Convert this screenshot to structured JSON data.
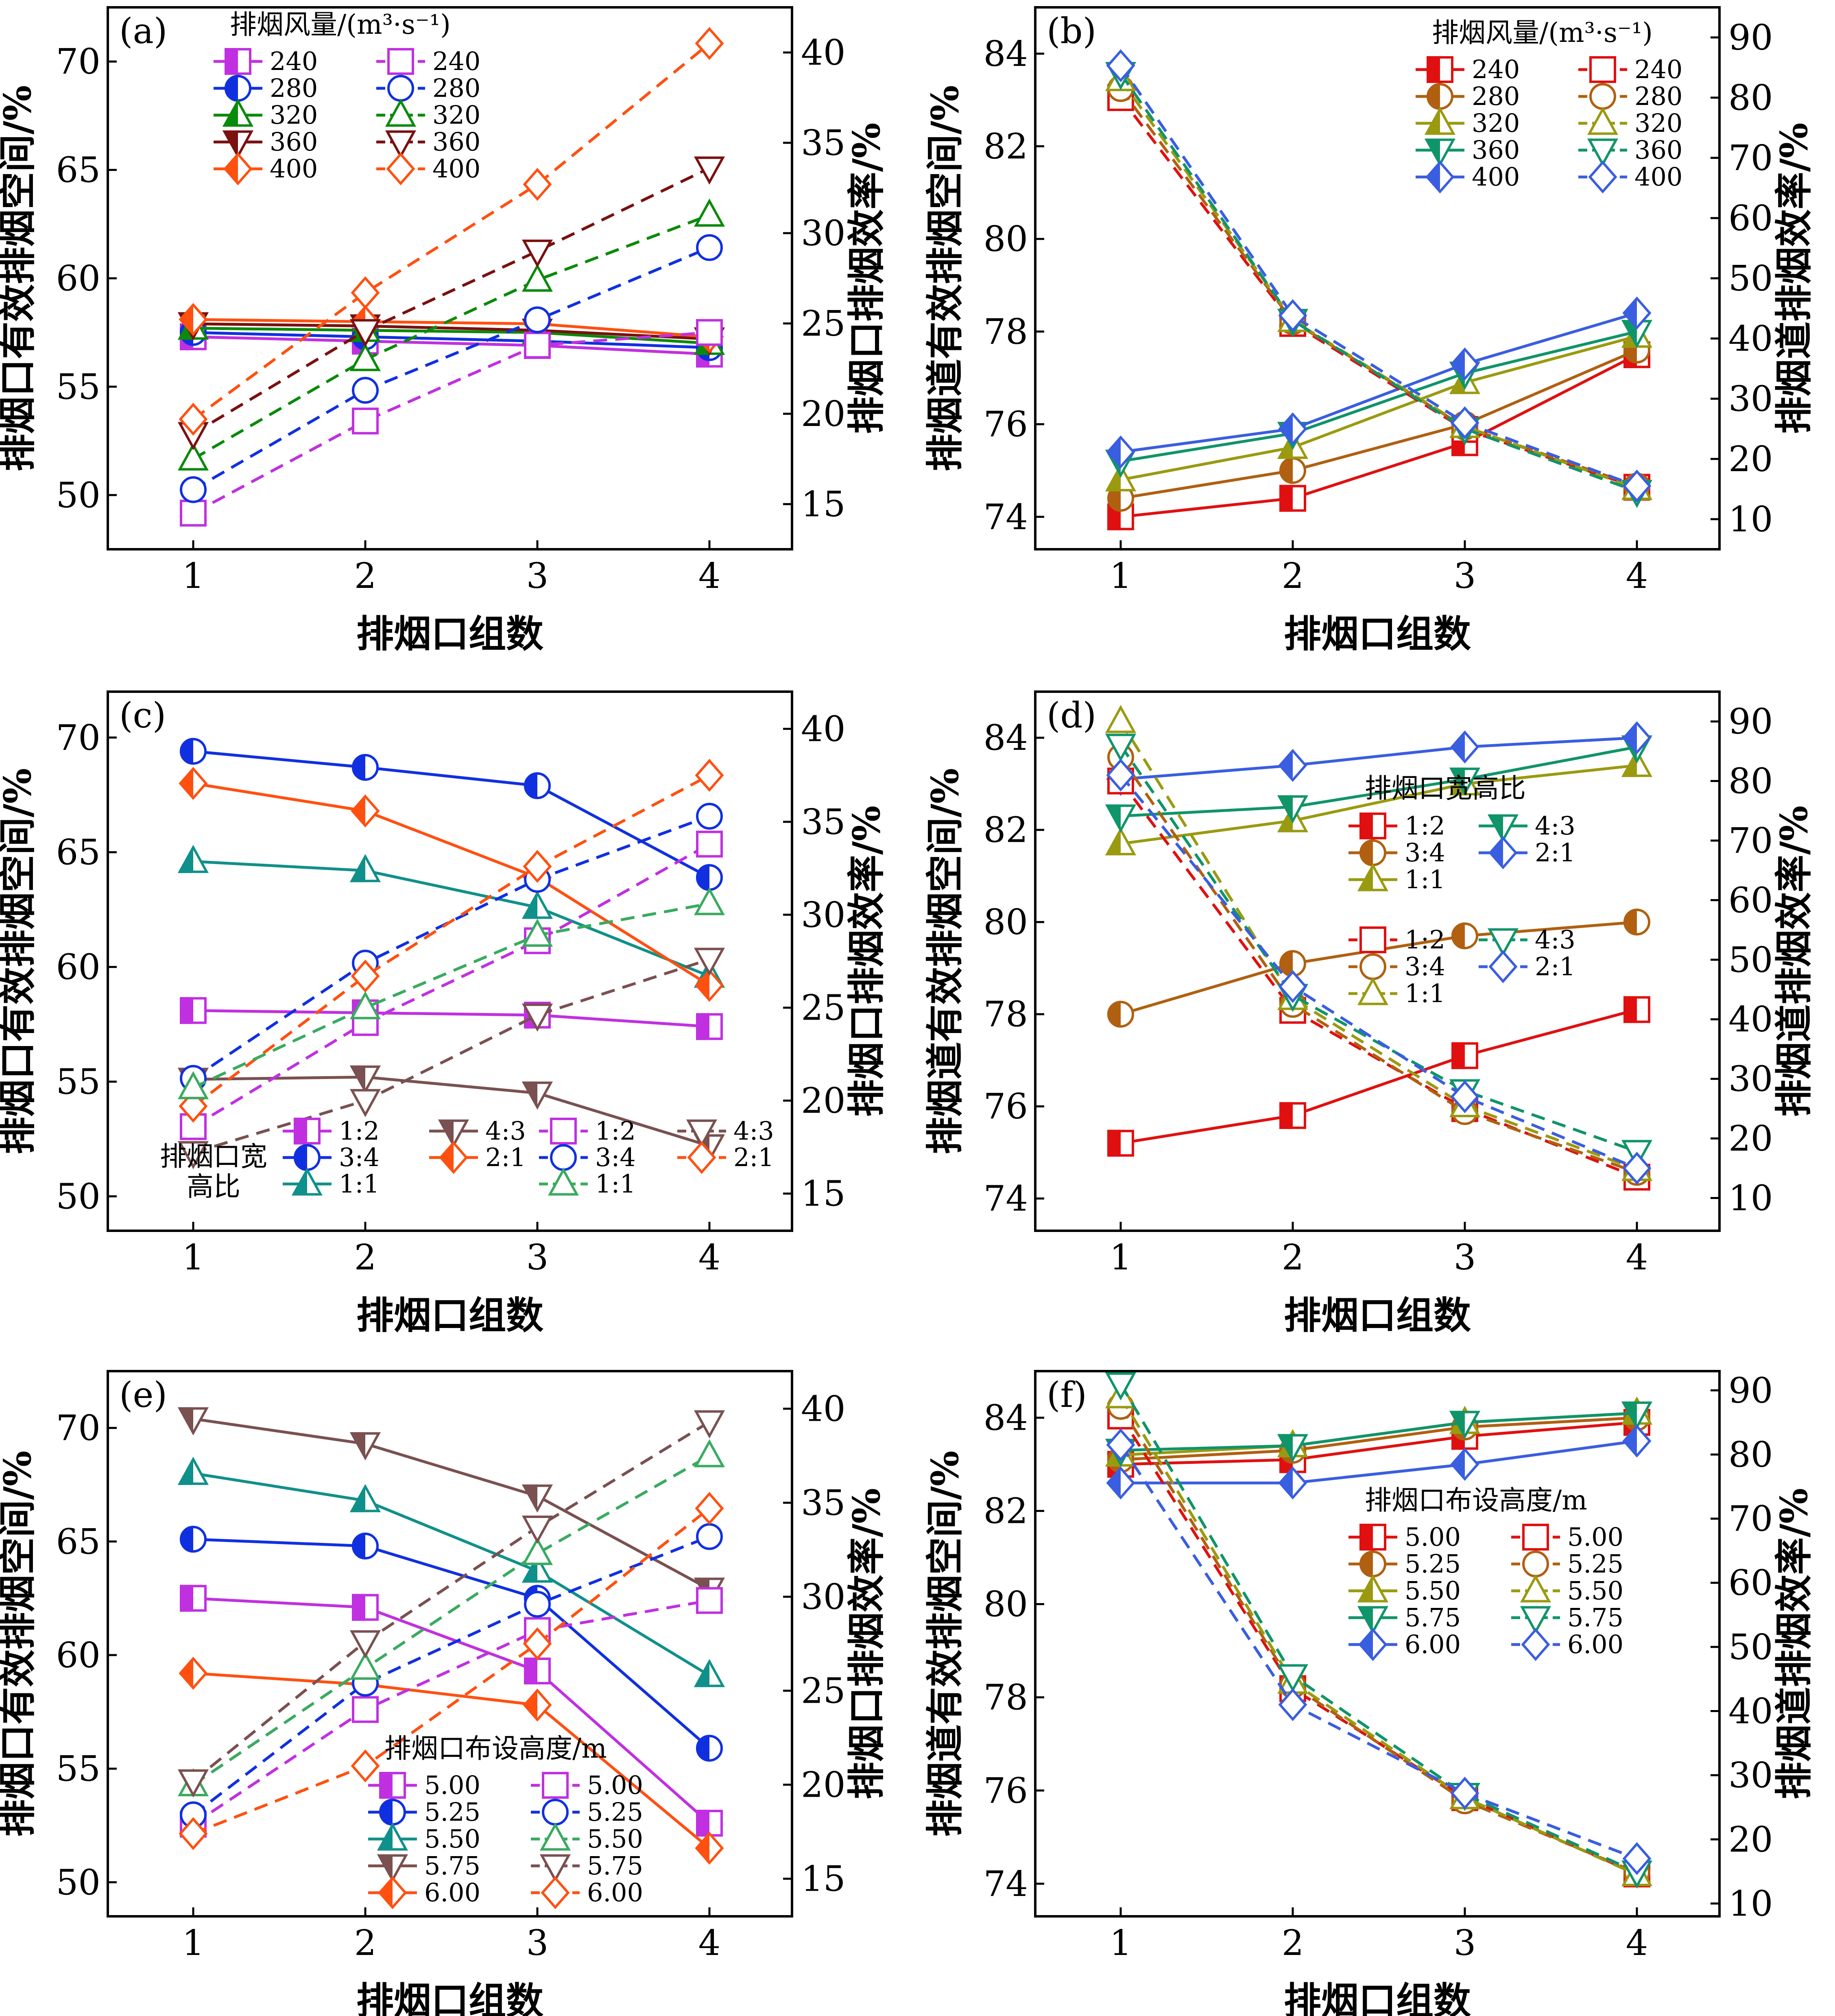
{
  "figure": {
    "x_axis_title": "排烟口组数",
    "left_titles": {
      "kou": "排烟口有效排烟空间/%",
      "dao": "排烟道有效排烟空间/%"
    },
    "right_titles": {
      "kou": "排烟口排烟效率/%",
      "dao": "排烟道排烟效率/%"
    }
  },
  "chart_data": [
    {
      "panel": "(a)",
      "type": "line",
      "kind": "kou",
      "x": [
        1,
        2,
        3,
        4
      ],
      "xlabel": "排烟口组数",
      "ylabel": "排烟口有效排烟空间/%",
      "y2label": "排烟口排烟效率/%",
      "ylim": [
        47.5,
        72.5
      ],
      "yticks": [
        50,
        55,
        60,
        65,
        70
      ],
      "y2lim": [
        12.5,
        42.5
      ],
      "y2ticks": [
        15,
        20,
        25,
        30,
        35,
        40
      ],
      "legend": {
        "title_lines": [
          "排烟风量/(m³·s⁻¹)"
        ],
        "position": "top-left",
        "layout": "two-column"
      },
      "series": [
        {
          "name": "240",
          "color": "#c030e0",
          "marker": "square",
          "axis": "left",
          "values": [
            57.3,
            57.1,
            56.9,
            56.5
          ]
        },
        {
          "name": "280",
          "color": "#1030e0",
          "marker": "circle",
          "axis": "left",
          "values": [
            57.5,
            57.3,
            57.1,
            56.8
          ]
        },
        {
          "name": "320",
          "color": "#0a8a0a",
          "marker": "triangle-up",
          "axis": "left",
          "values": [
            57.7,
            57.6,
            57.5,
            57.0
          ]
        },
        {
          "name": "360",
          "color": "#7a1010",
          "marker": "triangle-down",
          "axis": "left",
          "values": [
            57.9,
            57.8,
            57.6,
            57.2
          ]
        },
        {
          "name": "400",
          "color": "#ff5010",
          "marker": "diamond",
          "axis": "left",
          "values": [
            58.1,
            58.0,
            57.9,
            57.3
          ]
        },
        {
          "name": "240",
          "color": "#c030e0",
          "marker": "square",
          "axis": "right",
          "values": [
            14.5,
            19.6,
            23.8,
            24.5
          ]
        },
        {
          "name": "280",
          "color": "#1030e0",
          "marker": "circle",
          "axis": "right",
          "values": [
            15.8,
            21.3,
            25.2,
            29.2
          ]
        },
        {
          "name": "320",
          "color": "#0a8a0a",
          "marker": "triangle-up",
          "axis": "right",
          "values": [
            17.5,
            23.0,
            27.4,
            31.0
          ]
        },
        {
          "name": "360",
          "color": "#7a1010",
          "marker": "triangle-down",
          "axis": "right",
          "values": [
            18.9,
            24.6,
            29.0,
            33.6
          ]
        },
        {
          "name": "400",
          "color": "#ff5010",
          "marker": "diamond",
          "axis": "right",
          "values": [
            19.7,
            26.7,
            32.7,
            40.5
          ]
        }
      ]
    },
    {
      "panel": "(b)",
      "type": "line",
      "kind": "dao",
      "x": [
        1,
        2,
        3,
        4
      ],
      "xlabel": "排烟口组数",
      "ylabel": "排烟道有效排烟空间/%",
      "y2label": "排烟道排烟效率/%",
      "ylim": [
        73.3,
        85.0
      ],
      "yticks": [
        74,
        76,
        78,
        80,
        82,
        84
      ],
      "y2lim": [
        5.0,
        95.0
      ],
      "y2ticks": [
        10,
        20,
        30,
        40,
        50,
        60,
        70,
        80,
        90
      ],
      "legend": {
        "title_lines": [
          "排烟风量/(m³·s⁻¹)"
        ],
        "position": "top-right",
        "layout": "two-column"
      },
      "series": [
        {
          "name": "240",
          "color": "#e01010",
          "marker": "square",
          "axis": "left",
          "values": [
            74.0,
            74.4,
            75.6,
            77.5
          ]
        },
        {
          "name": "280",
          "color": "#b06010",
          "marker": "circle",
          "axis": "left",
          "values": [
            74.4,
            75.0,
            76.0,
            77.6
          ]
        },
        {
          "name": "320",
          "color": "#9a9a10",
          "marker": "triangle-up",
          "axis": "left",
          "values": [
            74.8,
            75.5,
            76.9,
            77.9
          ]
        },
        {
          "name": "360",
          "color": "#10946a",
          "marker": "triangle-down",
          "axis": "left",
          "values": [
            75.2,
            75.8,
            77.1,
            78.0
          ]
        },
        {
          "name": "400",
          "color": "#3a5ee0",
          "marker": "diamond",
          "axis": "left",
          "values": [
            75.4,
            75.9,
            77.3,
            78.4
          ]
        },
        {
          "name": "240",
          "color": "#e01010",
          "marker": "square",
          "axis": "right",
          "values": [
            80.0,
            42.5,
            24.9,
            15.3
          ]
        },
        {
          "name": "280",
          "color": "#b06010",
          "marker": "circle",
          "axis": "right",
          "values": [
            81.5,
            42.8,
            25.3,
            15.5
          ]
        },
        {
          "name": "320",
          "color": "#9a9a10",
          "marker": "triangle-up",
          "axis": "right",
          "values": [
            83.0,
            43.0,
            25.4,
            15.1
          ]
        },
        {
          "name": "360",
          "color": "#10946a",
          "marker": "triangle-down",
          "axis": "right",
          "values": [
            84.0,
            43.0,
            25.0,
            14.6
          ]
        },
        {
          "name": "400",
          "color": "#3a5ee0",
          "marker": "diamond",
          "axis": "right",
          "values": [
            85.3,
            43.8,
            26.0,
            15.5
          ]
        }
      ]
    },
    {
      "panel": "(c)",
      "type": "line",
      "kind": "kou",
      "x": [
        1,
        2,
        3,
        4
      ],
      "xlabel": "排烟口组数",
      "ylabel": "排烟口有效排烟空间/%",
      "y2label": "排烟口排烟效率/%",
      "ylim": [
        48.5,
        72.0
      ],
      "yticks": [
        50,
        55,
        60,
        65,
        70
      ],
      "y2lim": [
        13.0,
        42.0
      ],
      "y2ticks": [
        15,
        20,
        25,
        30,
        35,
        40
      ],
      "legend": {
        "title_lines": [
          "排烟口宽",
          "高比"
        ],
        "position": "bottom",
        "layout": "three-row-grid"
      },
      "series": [
        {
          "name": "1:2",
          "color": "#c030e0",
          "marker": "square",
          "axis": "left",
          "values": [
            58.1,
            58.0,
            57.9,
            57.4
          ]
        },
        {
          "name": "3:4",
          "color": "#1030e0",
          "marker": "circle",
          "axis": "left",
          "values": [
            69.4,
            68.7,
            67.9,
            63.9
          ]
        },
        {
          "name": "1:1",
          "color": "#10908a",
          "marker": "triangle-up",
          "axis": "left",
          "values": [
            64.6,
            64.2,
            62.6,
            59.6
          ]
        },
        {
          "name": "4:3",
          "color": "#7a5050",
          "marker": "triangle-down",
          "axis": "left",
          "values": [
            55.1,
            55.2,
            54.5,
            52.2
          ]
        },
        {
          "name": "2:1",
          "color": "#ff5010",
          "marker": "diamond",
          "axis": "left",
          "values": [
            68.0,
            66.8,
            63.9,
            59.2
          ]
        },
        {
          "name": "1:2",
          "color": "#c030e0",
          "marker": "square",
          "axis": "right",
          "values": [
            18.6,
            24.2,
            28.6,
            33.8
          ]
        },
        {
          "name": "3:4",
          "color": "#1030e0",
          "marker": "circle",
          "axis": "right",
          "values": [
            21.2,
            27.4,
            31.9,
            35.3
          ]
        },
        {
          "name": "4:3",
          "color": "#7a5050",
          "marker": "triangle-down",
          "axis": "right",
          "values": [
            17.2,
            20.0,
            24.6,
            27.6
          ]
        },
        {
          "name": "2:1",
          "color": "#ff5010",
          "marker": "diamond",
          "axis": "right",
          "values": [
            19.7,
            26.7,
            32.6,
            37.5
          ]
        },
        {
          "name": "1:1",
          "color": "#3aaa60",
          "marker": "triangle-up",
          "axis": "right",
          "values": [
            20.7,
            25.0,
            28.9,
            30.6
          ]
        }
      ]
    },
    {
      "panel": "(d)",
      "type": "line",
      "kind": "dao",
      "x": [
        1,
        2,
        3,
        4
      ],
      "xlabel": "排烟口组数",
      "ylabel": "排烟道有效排烟空间/%",
      "y2label": "排烟道排烟效率/%",
      "ylim": [
        73.3,
        85.0
      ],
      "yticks": [
        74,
        76,
        78,
        80,
        82,
        84
      ],
      "y2lim": [
        4.5,
        95.0
      ],
      "y2ticks": [
        10,
        20,
        30,
        40,
        50,
        60,
        70,
        80,
        90
      ],
      "legend": {
        "title_lines": [
          "排烟口宽高比"
        ],
        "position": "right-middle",
        "layout": "two-column"
      },
      "series": [
        {
          "name": "1:2",
          "color": "#e01010",
          "marker": "square",
          "axis": "left",
          "values": [
            75.2,
            75.8,
            77.1,
            78.1
          ]
        },
        {
          "name": "3:4",
          "color": "#b06010",
          "marker": "circle",
          "axis": "left",
          "values": [
            78.0,
            79.1,
            79.7,
            80.0
          ]
        },
        {
          "name": "1:1",
          "color": "#9a9a10",
          "marker": "triangle-up",
          "axis": "left",
          "values": [
            81.7,
            82.2,
            83.0,
            83.4
          ]
        },
        {
          "name": "4:3",
          "color": "#10946a",
          "marker": "triangle-down",
          "axis": "left",
          "values": [
            82.3,
            82.5,
            83.1,
            83.8
          ]
        },
        {
          "name": "2:1",
          "color": "#3a5ee0",
          "marker": "diamond",
          "axis": "left",
          "values": [
            83.1,
            83.4,
            83.8,
            84.0
          ]
        },
        {
          "name": "1:2",
          "color": "#e01010",
          "marker": "square",
          "axis": "right",
          "values": [
            80.0,
            41.5,
            25.0,
            13.5
          ]
        },
        {
          "name": "3:4",
          "color": "#b06010",
          "marker": "circle",
          "axis": "right",
          "values": [
            84.0,
            42.5,
            24.5,
            14.3
          ]
        },
        {
          "name": "1:1",
          "color": "#9a9a10",
          "marker": "triangle-up",
          "axis": "right",
          "values": [
            90.0,
            43.5,
            25.5,
            14.8
          ]
        },
        {
          "name": "4:3",
          "color": "#10946a",
          "marker": "triangle-down",
          "axis": "right",
          "values": [
            86.0,
            44.0,
            28.0,
            17.8
          ]
        },
        {
          "name": "2:1",
          "color": "#3a5ee0",
          "marker": "diamond",
          "axis": "right",
          "values": [
            81.0,
            45.5,
            27.0,
            15.0
          ]
        }
      ]
    },
    {
      "panel": "(e)",
      "type": "line",
      "kind": "kou",
      "x": [
        1,
        2,
        3,
        4
      ],
      "xlabel": "排烟口组数",
      "ylabel": "排烟口有效排烟空间/%",
      "y2label": "排烟口排烟效率/%",
      "ylim": [
        48.5,
        72.5
      ],
      "yticks": [
        50,
        55,
        60,
        65,
        70
      ],
      "y2lim": [
        13.0,
        42.0
      ],
      "y2ticks": [
        15,
        20,
        25,
        30,
        35,
        40
      ],
      "legend": {
        "title_lines": [
          "排烟口布设高度/m"
        ],
        "position": "bottom-left",
        "layout": "two-column"
      },
      "series": [
        {
          "name": "5.00",
          "color": "#c030e0",
          "marker": "square",
          "axis": "left",
          "values": [
            62.5,
            62.1,
            59.3,
            52.6
          ]
        },
        {
          "name": "5.25",
          "color": "#1030e0",
          "marker": "circle",
          "axis": "left",
          "values": [
            65.1,
            64.8,
            62.5,
            55.9
          ]
        },
        {
          "name": "5.50",
          "color": "#10908a",
          "marker": "triangle-up",
          "axis": "left",
          "values": [
            68.0,
            66.8,
            63.7,
            59.1
          ]
        },
        {
          "name": "5.75",
          "color": "#7a5050",
          "marker": "triangle-down",
          "axis": "left",
          "values": [
            70.4,
            69.3,
            67.0,
            62.9
          ]
        },
        {
          "name": "6.00",
          "color": "#ff5010",
          "marker": "diamond",
          "axis": "left",
          "values": [
            59.2,
            58.7,
            57.8,
            51.5
          ]
        },
        {
          "name": "5.00",
          "color": "#c030e0",
          "marker": "square",
          "axis": "right",
          "values": [
            17.9,
            24.0,
            28.2,
            29.8
          ]
        },
        {
          "name": "5.25",
          "color": "#1030e0",
          "marker": "circle",
          "axis": "right",
          "values": [
            18.4,
            25.4,
            29.6,
            33.2
          ]
        },
        {
          "name": "5.50",
          "color": "#3aaa60",
          "marker": "triangle-up",
          "axis": "right",
          "values": [
            20.0,
            26.2,
            32.3,
            37.5
          ]
        },
        {
          "name": "5.75",
          "color": "#7a5050",
          "marker": "triangle-down",
          "axis": "right",
          "values": [
            20.2,
            27.6,
            33.7,
            39.3
          ]
        },
        {
          "name": "6.00",
          "color": "#ff5010",
          "marker": "diamond",
          "axis": "right",
          "values": [
            17.4,
            21.0,
            27.5,
            34.7
          ]
        }
      ]
    },
    {
      "panel": "(f)",
      "type": "line",
      "kind": "dao",
      "x": [
        1,
        2,
        3,
        4
      ],
      "xlabel": "排烟口组数",
      "ylabel": "排烟道有效排烟空间/%",
      "y2label": "排烟道排烟效率/%",
      "ylim": [
        73.3,
        85.0
      ],
      "yticks": [
        74,
        76,
        78,
        80,
        82,
        84
      ],
      "y2lim": [
        8.0,
        93.0
      ],
      "y2ticks": [
        10,
        20,
        30,
        40,
        50,
        60,
        70,
        80,
        90
      ],
      "legend": {
        "title_lines": [
          "排烟口布设高度/m"
        ],
        "position": "right-middle",
        "layout": "two-column"
      },
      "series": [
        {
          "name": "5.00",
          "color": "#e01010",
          "marker": "square",
          "axis": "left",
          "values": [
            83.0,
            83.1,
            83.6,
            83.9
          ]
        },
        {
          "name": "5.25",
          "color": "#b06010",
          "marker": "circle",
          "axis": "left",
          "values": [
            83.1,
            83.3,
            83.8,
            84.0
          ]
        },
        {
          "name": "5.50",
          "color": "#9a9a10",
          "marker": "triangle-up",
          "axis": "left",
          "values": [
            83.2,
            83.4,
            83.9,
            84.1
          ]
        },
        {
          "name": "5.75",
          "color": "#10946a",
          "marker": "triangle-down",
          "axis": "left",
          "values": [
            83.3,
            83.4,
            83.9,
            84.1
          ]
        },
        {
          "name": "6.00",
          "color": "#3a5ee0",
          "marker": "diamond",
          "axis": "left",
          "values": [
            82.6,
            82.6,
            83.0,
            83.5
          ]
        },
        {
          "name": "5.00",
          "color": "#e01010",
          "marker": "square",
          "axis": "right",
          "values": [
            86.0,
            43.5,
            26.5,
            14.6
          ]
        },
        {
          "name": "5.25",
          "color": "#b06010",
          "marker": "circle",
          "axis": "right",
          "values": [
            87.5,
            44.0,
            26.0,
            14.8
          ]
        },
        {
          "name": "5.50",
          "color": "#9a9a10",
          "marker": "triangle-up",
          "axis": "right",
          "values": [
            89.0,
            44.5,
            26.5,
            14.5
          ]
        },
        {
          "name": "5.75",
          "color": "#10946a",
          "marker": "triangle-down",
          "axis": "right",
          "values": [
            91.0,
            45.5,
            27.0,
            14.9
          ]
        },
        {
          "name": "6.00",
          "color": "#3a5ee0",
          "marker": "diamond",
          "axis": "right",
          "values": [
            81.5,
            41.0,
            27.2,
            17.0
          ]
        }
      ]
    }
  ]
}
